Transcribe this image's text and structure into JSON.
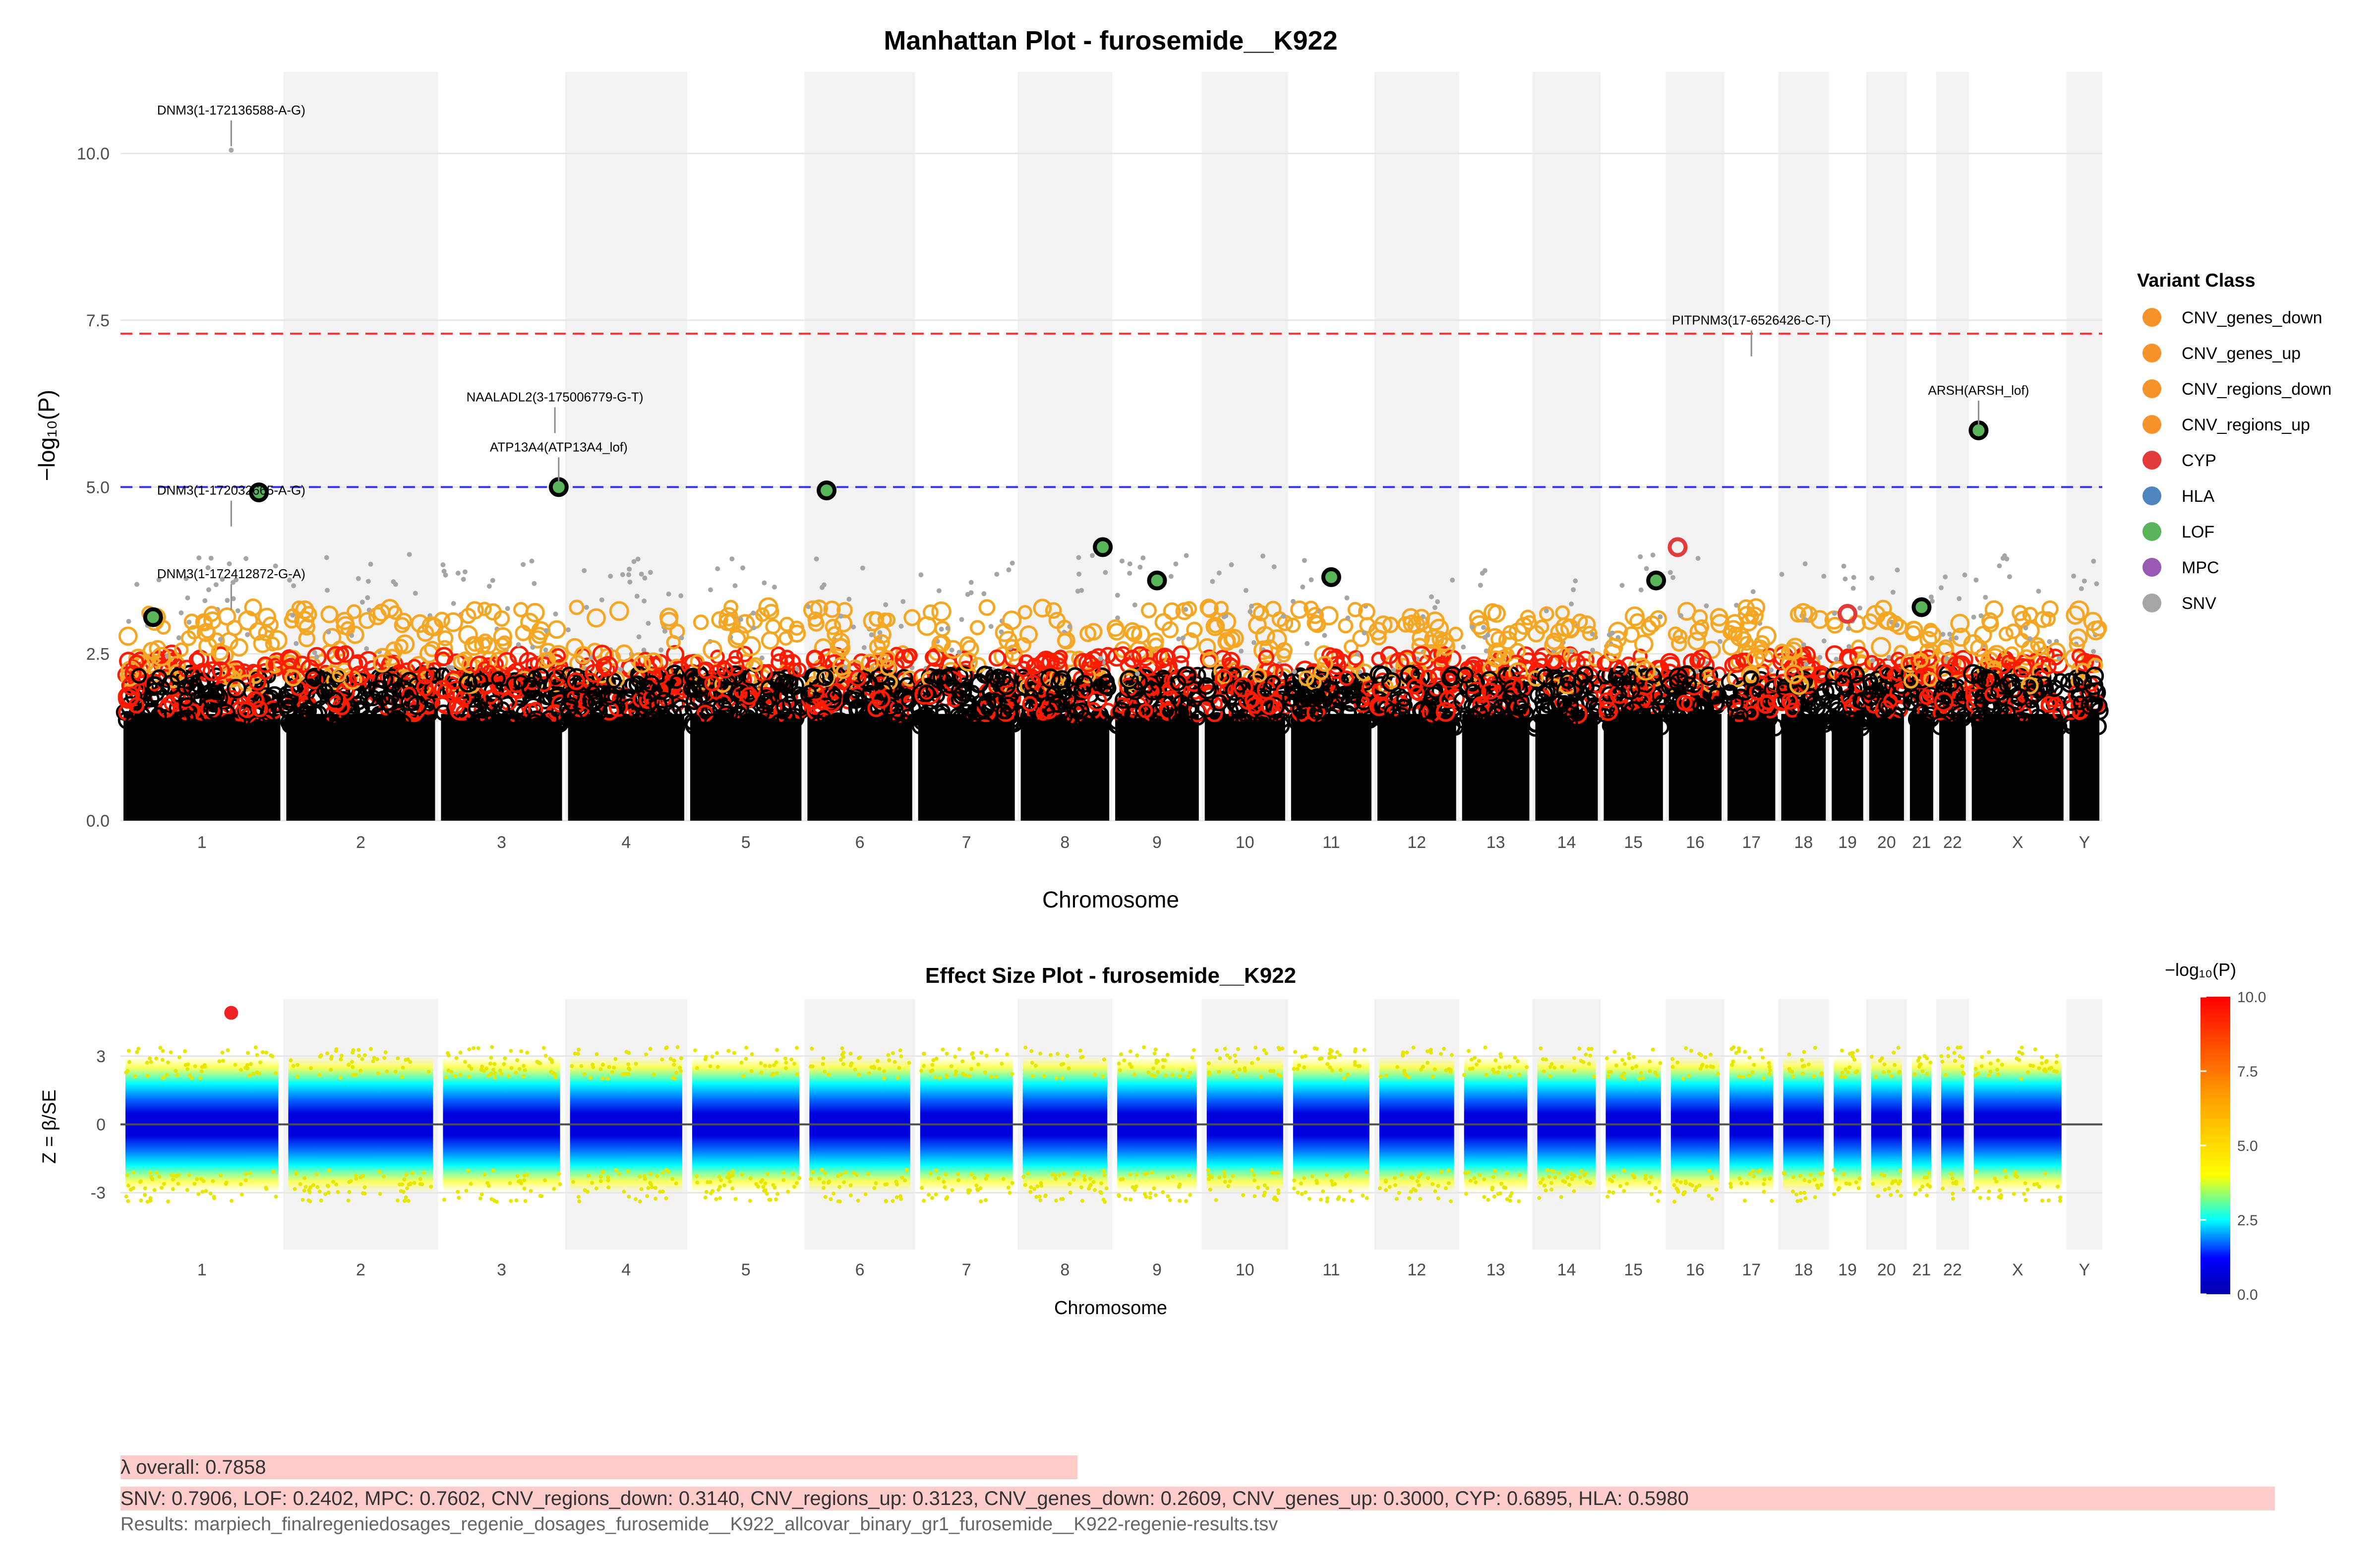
{
  "chart_data": [
    {
      "type": "scatter",
      "title": "Manhattan Plot - furosemide__K922",
      "xlabel": "Chromosome",
      "ylabel": "−log₁₀(P)",
      "ylim": [
        0,
        11
      ],
      "yticks": [
        0.0,
        2.5,
        5.0,
        7.5,
        10.0
      ],
      "ytick_labels": [
        "0.0",
        "2.5",
        "5.0",
        "7.5",
        "10.0"
      ],
      "chromosomes": [
        "1",
        "2",
        "3",
        "4",
        "5",
        "6",
        "7",
        "8",
        "9",
        "10",
        "11",
        "12",
        "13",
        "14",
        "15",
        "16",
        "17",
        "18",
        "19",
        "20",
        "21",
        "22",
        "X",
        "Y"
      ],
      "thresholds": [
        {
          "name": "genome-wide",
          "value": 7.3,
          "color": "#ff3333"
        },
        {
          "name": "suggestive",
          "value": 5.0,
          "color": "#3333ff"
        }
      ],
      "annotations": [
        {
          "label": "DNM3(1-172136588-A-G)",
          "chrom": "1",
          "y": 10.05
        },
        {
          "label": "DNM3(1-172032665-A-G)",
          "chrom": "1",
          "y": 4.35
        },
        {
          "label": "DNM3(1-172412872-G-A)",
          "chrom": "1",
          "y": 3.1
        },
        {
          "label": "NAALADL2(3-175006779-G-T)",
          "chrom": "3",
          "y": 5.75
        },
        {
          "label": "ATP13A4(ATP13A4_lof)",
          "chrom": "3",
          "y": 5.0
        },
        {
          "label": "PITPNM3(17-6526426-C-T)",
          "chrom": "17",
          "y": 6.9
        },
        {
          "label": "ARSH(ARSH_lof)",
          "chrom": "X",
          "y": 5.85
        }
      ],
      "highlight_points": [
        {
          "chrom": "1",
          "y": 4.92,
          "class": "LOF"
        },
        {
          "chrom": "1",
          "y": 3.05,
          "class": "LOF"
        },
        {
          "chrom": "3",
          "y": 5.0,
          "class": "LOF"
        },
        {
          "chrom": "6",
          "y": 4.95,
          "class": "LOF"
        },
        {
          "chrom": "8",
          "y": 4.1,
          "class": "LOF"
        },
        {
          "chrom": "9",
          "y": 3.6,
          "class": "LOF"
        },
        {
          "chrom": "11",
          "y": 3.65,
          "class": "LOF"
        },
        {
          "chrom": "15",
          "y": 3.6,
          "class": "LOF"
        },
        {
          "chrom": "16",
          "y": 4.1,
          "class": "CYP"
        },
        {
          "chrom": "19",
          "y": 3.1,
          "class": "CYP"
        },
        {
          "chrom": "21",
          "y": 3.2,
          "class": "LOF"
        },
        {
          "chrom": "X",
          "y": 5.85,
          "class": "LOF"
        }
      ],
      "legend": {
        "title": "Variant Class",
        "position": "right",
        "entries": [
          {
            "label": "CNV_genes_down",
            "color": "#f5922a"
          },
          {
            "label": "CNV_genes_up",
            "color": "#f5922a"
          },
          {
            "label": "CNV_regions_down",
            "color": "#f5922a"
          },
          {
            "label": "CNV_regions_up",
            "color": "#f5922a"
          },
          {
            "label": "CYP",
            "color": "#e23b3b"
          },
          {
            "label": "HLA",
            "color": "#4f86c0"
          },
          {
            "label": "LOF",
            "color": "#58b55a"
          },
          {
            "label": "MPC",
            "color": "#9a59b3"
          },
          {
            "label": "SNV",
            "color": "#a5a5a5"
          }
        ]
      }
    },
    {
      "type": "scatter",
      "title": "Effect Size Plot - furosemide__K922",
      "xlabel": "Chromosome",
      "ylabel": "Z = β/SE",
      "ylim": [
        -5.5,
        5.5
      ],
      "yticks": [
        -3,
        0,
        3
      ],
      "ytick_labels": [
        "-3",
        "0",
        "3"
      ],
      "chromosomes": [
        "1",
        "2",
        "3",
        "4",
        "5",
        "6",
        "7",
        "8",
        "9",
        "10",
        "11",
        "12",
        "13",
        "14",
        "15",
        "16",
        "17",
        "18",
        "19",
        "20",
        "21",
        "22",
        "X",
        "Y"
      ],
      "outlier": {
        "chrom": "1",
        "z": 4.9,
        "log10p": 10.05
      },
      "colorbar": {
        "title": "−log₁₀(P)",
        "range": [
          0,
          10
        ],
        "ticks": [
          "0.0",
          "2.5",
          "5.0",
          "7.5",
          "10.0"
        ],
        "colors": [
          "#0000aa",
          "#0000ff",
          "#00ffff",
          "#ffff00",
          "#ffa500",
          "#ff0000"
        ]
      }
    }
  ],
  "footer": {
    "lambda_overall": "λ overall: 0.7858",
    "lambda_by_class": "SNV: 0.7906, LOF: 0.2402, MPC: 0.7602, CNV_regions_down: 0.3140, CNV_regions_up: 0.3123, CNV_genes_down: 0.2609, CNV_genes_up: 0.3000, CYP: 0.6895, HLA: 0.5980",
    "results_file": "Results: marpiech_finalregeniedosages_regenie_dosages_furosemide__K922_allcovar_binary_gr1_furosemide__K922-regenie-results.tsv"
  }
}
